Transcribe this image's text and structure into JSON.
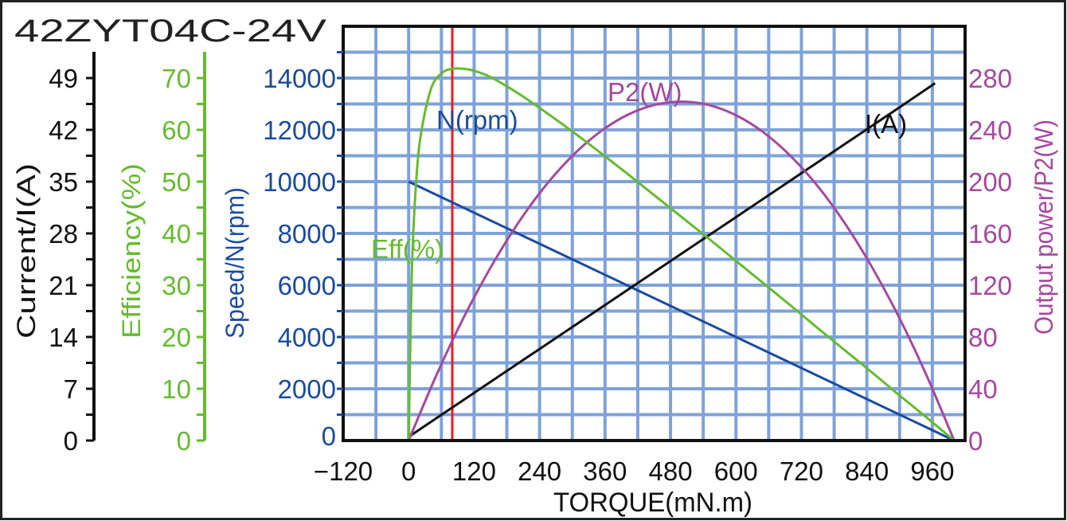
{
  "chart_data": {
    "type": "line",
    "title": "42ZYT04C-24V",
    "xlabel": "TORQUE(mN.m)",
    "xlim": [
      -120,
      1020
    ],
    "x_ticks": [
      -120,
      0,
      120,
      240,
      360,
      480,
      600,
      720,
      840,
      960
    ],
    "x_tick_labels": [
      "−120",
      "0",
      "120",
      "240",
      "360",
      "480",
      "600",
      "720",
      "840",
      "960"
    ],
    "grid": true,
    "axes": {
      "current": {
        "label": "Current/I(A)",
        "range": [
          0,
          56
        ],
        "ticks": [
          0,
          7,
          14,
          21,
          28,
          35,
          42,
          49
        ],
        "color": "#111111"
      },
      "efficiency": {
        "label": "Efficiency(%)",
        "range": [
          0,
          80
        ],
        "ticks": [
          0,
          10,
          20,
          30,
          40,
          50,
          60,
          70
        ],
        "color": "#66bb2e"
      },
      "speed": {
        "label": "Speed/N(rpm)",
        "range": [
          0,
          16000
        ],
        "ticks": [
          0,
          2000,
          4000,
          6000,
          8000,
          10000,
          12000,
          14000
        ],
        "color": "#1b4b9e"
      },
      "power": {
        "label": "Output power/P2(W)",
        "range": [
          0,
          320
        ],
        "ticks": [
          0,
          40,
          80,
          120,
          160,
          200,
          240,
          280
        ],
        "color": "#a5489f"
      }
    },
    "marker_line": {
      "x": 80,
      "color": "#ee1c1c"
    },
    "series": [
      {
        "name": "N(rpm)",
        "axis": "speed",
        "color": "#1b4b9e",
        "x": [
          0,
          100,
          200,
          300,
          400,
          500,
          600,
          700,
          800,
          900,
          1000
        ],
        "y": [
          10000,
          9000,
          8000,
          7000,
          6000,
          5000,
          4000,
          3000,
          2000,
          1000,
          0
        ]
      },
      {
        "name": "I(A)",
        "axis": "current",
        "color": "#111111",
        "x": [
          0,
          100,
          200,
          300,
          400,
          500,
          600,
          700,
          800,
          900,
          965
        ],
        "y": [
          0.5,
          5.45,
          10.4,
          15.35,
          20.3,
          25.25,
          30.2,
          35.15,
          40.1,
          45.05,
          48.3
        ]
      },
      {
        "name": "P2(W)",
        "axis": "power",
        "color": "#a5489f",
        "x": [
          0,
          50,
          100,
          150,
          200,
          250,
          300,
          350,
          400,
          450,
          500,
          550,
          600,
          650,
          700,
          750,
          800,
          850,
          900,
          950,
          1000
        ],
        "y": [
          0,
          49.7,
          94.3,
          133.5,
          167.6,
          196.4,
          219.9,
          238.2,
          251.3,
          259.2,
          261.8,
          259.2,
          251.3,
          238.2,
          219.9,
          196.4,
          167.6,
          133.5,
          94.3,
          49.7,
          0
        ]
      },
      {
        "name": "Eff(%)",
        "axis": "efficiency",
        "color": "#66bb2e",
        "x": [
          0,
          5,
          10,
          20,
          40,
          60,
          80,
          100,
          120,
          150,
          200,
          250,
          300,
          350,
          400,
          450,
          500,
          550,
          600,
          650,
          700,
          750,
          800,
          850,
          900,
          950,
          1000
        ],
        "y": [
          0,
          29.0,
          43.4,
          57.4,
          67.6,
          70.9,
          71.8,
          71.8,
          71.4,
          70.2,
          67.1,
          63.5,
          59.7,
          55.7,
          51.6,
          47.4,
          43.2,
          39.0,
          34.7,
          30.4,
          26.1,
          21.7,
          17.4,
          13.1,
          8.7,
          4.4,
          0
        ]
      }
    ]
  }
}
